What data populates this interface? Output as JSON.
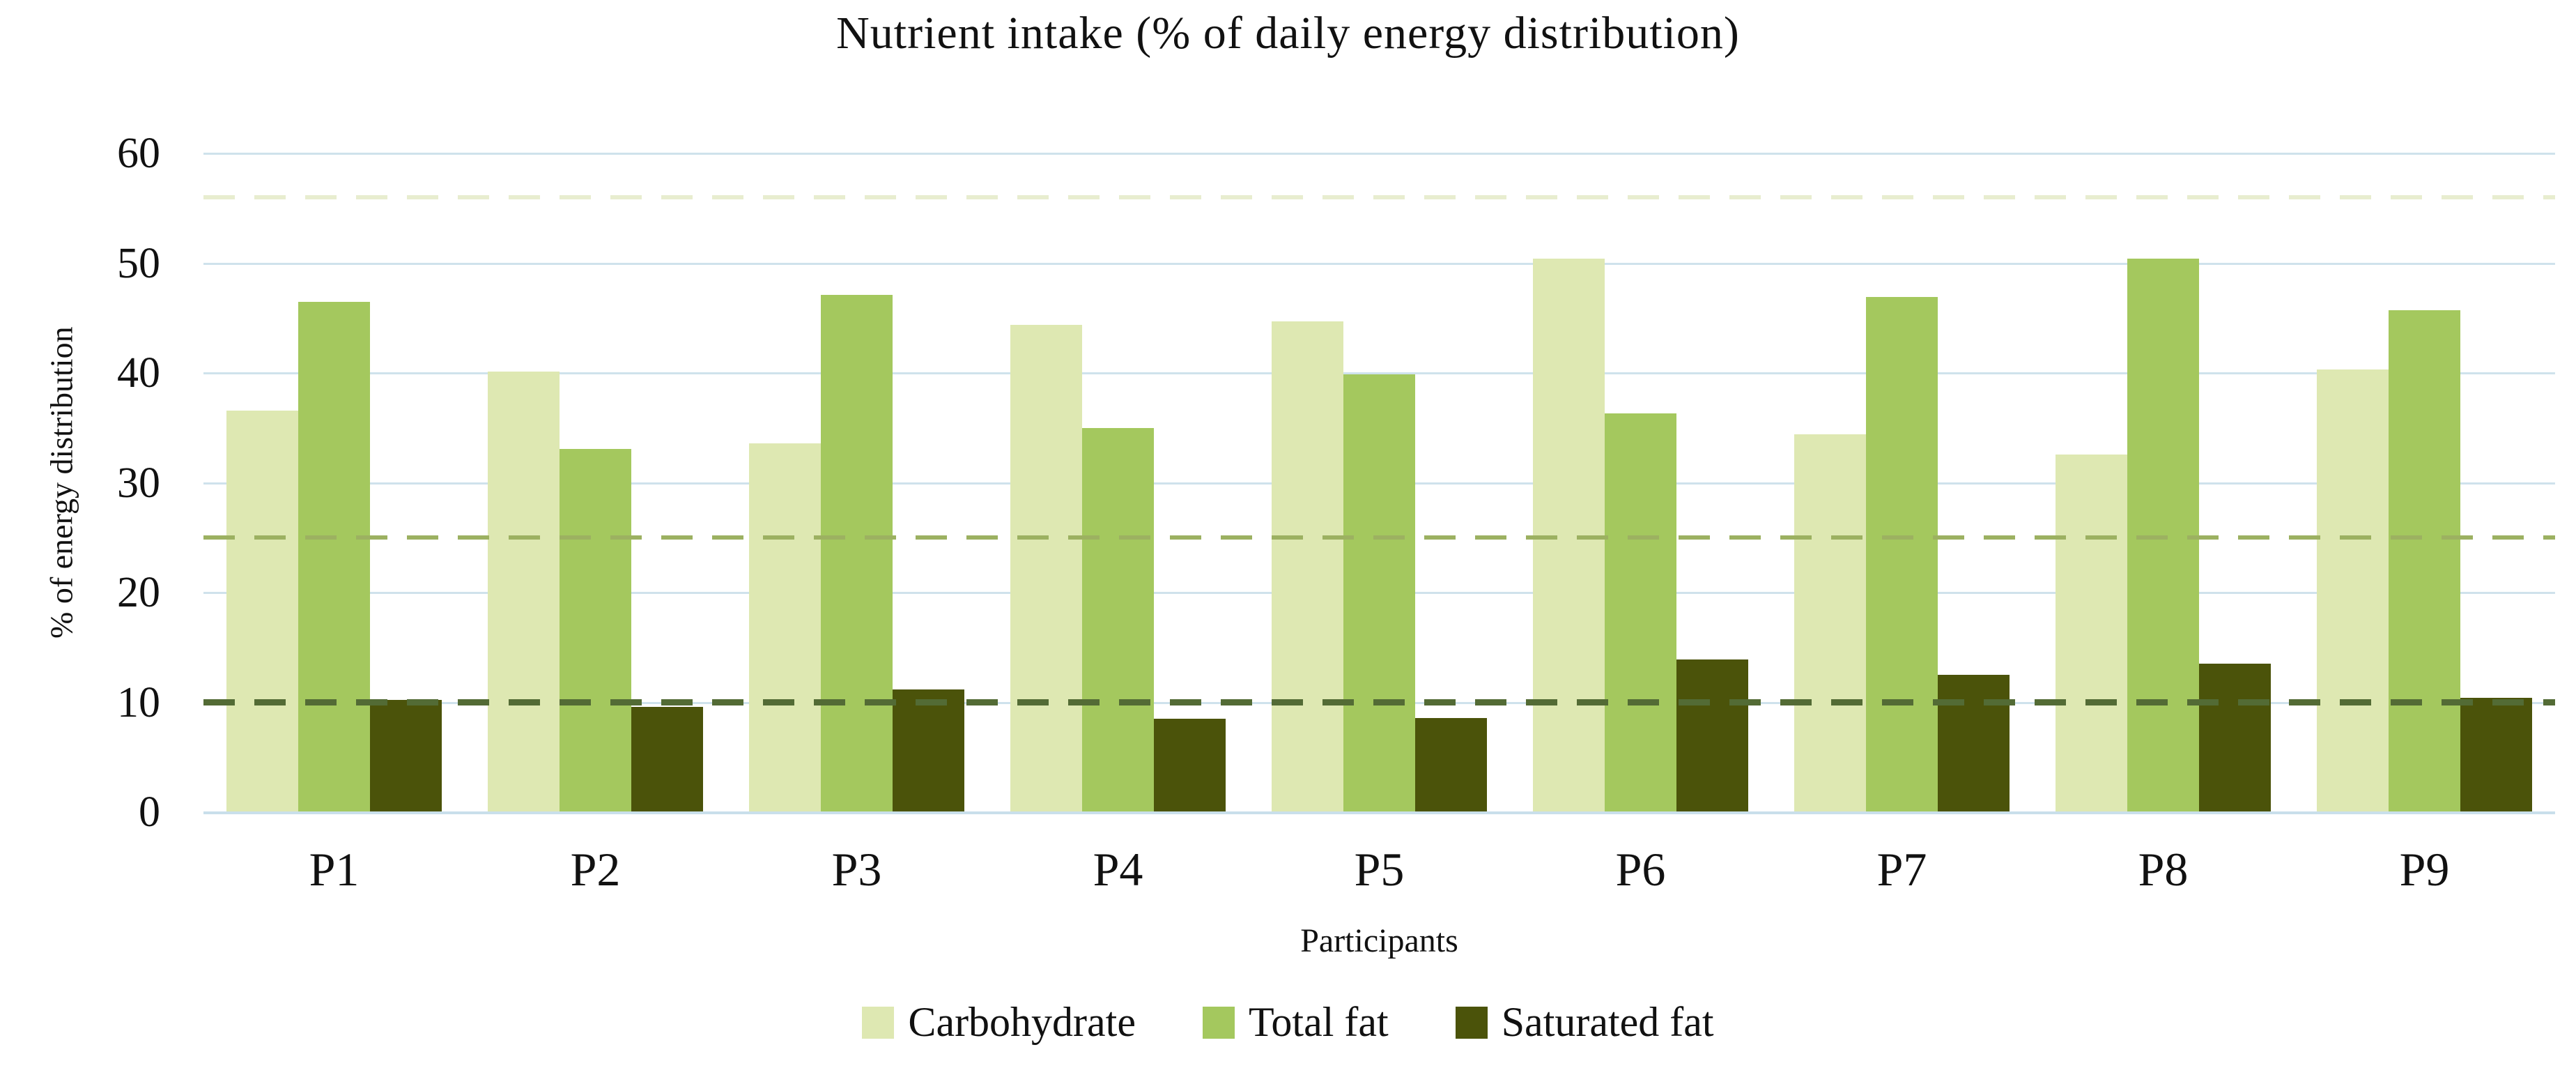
{
  "chart_data": {
    "type": "bar",
    "title": "Nutrient intake (% of daily energy distribution)",
    "xlabel": "Participants",
    "ylabel": "% of energy distribution",
    "ylim": [
      0,
      60
    ],
    "yticks": [
      0,
      10,
      20,
      30,
      40,
      50,
      60
    ],
    "grid": "horizontal",
    "gridline_color": "#cfe2ec",
    "legend_position": "bottom",
    "categories": [
      "P1",
      "P2",
      "P3",
      "P4",
      "P5",
      "P6",
      "P7",
      "P8",
      "P9"
    ],
    "series": [
      {
        "name": "Carbohydrate",
        "color": "#dee8b2",
        "values": [
          36.6,
          40.1,
          33.6,
          44.4,
          44.7,
          50.4,
          34.4,
          32.6,
          40.3
        ]
      },
      {
        "name": "Total fat",
        "color": "#a4c85e",
        "values": [
          46.5,
          33.1,
          47.1,
          35.0,
          39.9,
          36.3,
          46.9,
          50.4,
          45.7
        ]
      },
      {
        "name": "Saturated fat",
        "color": "#4b530a",
        "values": [
          10.2,
          9.6,
          11.2,
          8.5,
          8.6,
          13.9,
          12.5,
          13.5,
          10.4
        ]
      }
    ],
    "reference_lines": [
      {
        "series": "Carbohydrate",
        "value": 56,
        "color": "#e8edcf",
        "style": "dashed",
        "thickness": 6
      },
      {
        "series": "Total fat",
        "value": 25,
        "color": "#9cb161",
        "style": "dashed",
        "thickness": 6
      },
      {
        "series": "Saturated fat",
        "value": 10,
        "color": "#536b35",
        "style": "dashed",
        "thickness": 9
      }
    ]
  }
}
